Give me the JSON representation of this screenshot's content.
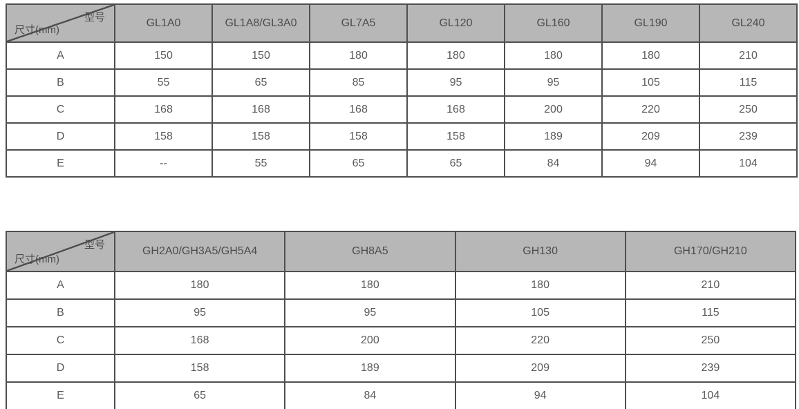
{
  "colors": {
    "header_background": "#b7b7b7",
    "border": "#4f4f4f",
    "header_text": "#4c4c4c",
    "body_text": "#5a5a5a",
    "page_background": "#ffffff"
  },
  "tables": [
    {
      "name": "GL series dimensions",
      "corner": {
        "top_right": "型号",
        "bottom_left": "尺寸(mm)"
      },
      "columns": [
        "GL1A0",
        "GL1A8/GL3A0",
        "GL7A5",
        "GL120",
        "GL160",
        "GL190",
        "GL240"
      ],
      "rows": [
        {
          "label": "A",
          "values": [
            "150",
            "150",
            "180",
            "180",
            "180",
            "180",
            "210"
          ]
        },
        {
          "label": "B",
          "values": [
            "55",
            "65",
            "85",
            "95",
            "95",
            "105",
            "115"
          ]
        },
        {
          "label": "C",
          "values": [
            "168",
            "168",
            "168",
            "168",
            "200",
            "220",
            "250"
          ]
        },
        {
          "label": "D",
          "values": [
            "158",
            "158",
            "158",
            "158",
            "189",
            "209",
            "239"
          ]
        },
        {
          "label": "E",
          "values": [
            "--",
            "55",
            "65",
            "65",
            "84",
            "94",
            "104"
          ]
        }
      ]
    },
    {
      "name": "GH series dimensions",
      "corner": {
        "top_right": "型号",
        "bottom_left": "尺寸(mm)"
      },
      "columns": [
        "GH2A0/GH3A5/GH5A4",
        "GH8A5",
        "GH130",
        "GH170/GH210"
      ],
      "rows": [
        {
          "label": "A",
          "values": [
            "180",
            "180",
            "180",
            "210"
          ]
        },
        {
          "label": "B",
          "values": [
            "95",
            "95",
            "105",
            "115"
          ]
        },
        {
          "label": "C",
          "values": [
            "168",
            "200",
            "220",
            "250"
          ]
        },
        {
          "label": "D",
          "values": [
            "158",
            "189",
            "209",
            "239"
          ]
        },
        {
          "label": "E",
          "values": [
            "65",
            "84",
            "94",
            "104"
          ]
        }
      ]
    }
  ]
}
